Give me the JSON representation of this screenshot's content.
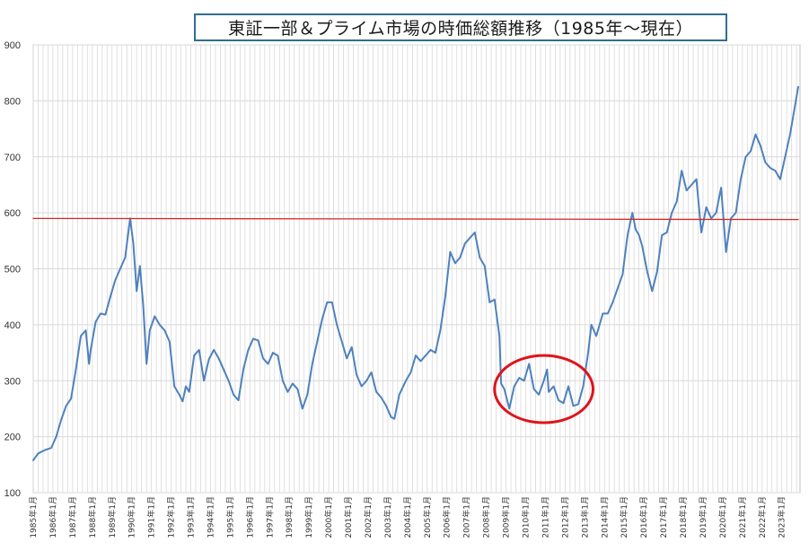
{
  "chart_data": {
    "type": "line",
    "title": "東証一部＆プライム市場の時価総額推移（1985年～現在）",
    "xlabel": "",
    "ylabel": "",
    "ylim": [
      100,
      900
    ],
    "yticks": [
      100,
      200,
      300,
      400,
      500,
      600,
      700,
      800,
      900
    ],
    "x_tick_labels": [
      "1985年1月",
      "1986年1月",
      "1987年1月",
      "1988年1月",
      "1989年1月",
      "1990年1月",
      "1991年1月",
      "1992年1月",
      "1993年1月",
      "1994年1月",
      "1995年1月",
      "1996年1月",
      "1997年1月",
      "1998年1月",
      "1999年1月",
      "2000年1月",
      "2001年1月",
      "2002年1月",
      "2003年1月",
      "2004年1月",
      "2005年1月",
      "2006年1月",
      "2007年1月",
      "2008年1月",
      "2009年1月",
      "2010年1月",
      "2011年1月",
      "2012年1月",
      "2013年1月",
      "2014年1月",
      "2015年1月",
      "2016年1月",
      "2017年1月",
      "2018年1月",
      "2019年1月",
      "2020年1月",
      "2021年1月",
      "2022年1月",
      "2023年1月"
    ],
    "grid": true,
    "x_range": [
      "1985-01",
      "2023-11"
    ],
    "series": [
      {
        "color": "#4f81bd",
        "points": [
          [
            "1985-01",
            158
          ],
          [
            "1985-04",
            170
          ],
          [
            "1985-08",
            176
          ],
          [
            "1985-12",
            180
          ],
          [
            "1986-03",
            200
          ],
          [
            "1986-06",
            230
          ],
          [
            "1986-09",
            255
          ],
          [
            "1986-12",
            268
          ],
          [
            "1987-03",
            320
          ],
          [
            "1987-06",
            380
          ],
          [
            "1987-09",
            390
          ],
          [
            "1987-11",
            330
          ],
          [
            "1987-12",
            355
          ],
          [
            "1988-03",
            405
          ],
          [
            "1988-06",
            420
          ],
          [
            "1988-09",
            418
          ],
          [
            "1988-12",
            450
          ],
          [
            "1989-03",
            480
          ],
          [
            "1989-06",
            500
          ],
          [
            "1989-09",
            520
          ],
          [
            "1989-12",
            590
          ],
          [
            "1990-02",
            545
          ],
          [
            "1990-04",
            460
          ],
          [
            "1990-06",
            505
          ],
          [
            "1990-08",
            435
          ],
          [
            "1990-10",
            330
          ],
          [
            "1990-12",
            390
          ],
          [
            "1991-03",
            415
          ],
          [
            "1991-06",
            400
          ],
          [
            "1991-09",
            390
          ],
          [
            "1991-12",
            370
          ],
          [
            "1992-03",
            290
          ],
          [
            "1992-06",
            275
          ],
          [
            "1992-08",
            263
          ],
          [
            "1992-10",
            290
          ],
          [
            "1992-12",
            280
          ],
          [
            "1993-03",
            345
          ],
          [
            "1993-06",
            355
          ],
          [
            "1993-09",
            300
          ],
          [
            "1993-12",
            338
          ],
          [
            "1994-03",
            355
          ],
          [
            "1994-06",
            340
          ],
          [
            "1994-09",
            320
          ],
          [
            "1994-12",
            300
          ],
          [
            "1995-03",
            275
          ],
          [
            "1995-06",
            265
          ],
          [
            "1995-09",
            320
          ],
          [
            "1995-12",
            355
          ],
          [
            "1996-03",
            375
          ],
          [
            "1996-06",
            372
          ],
          [
            "1996-09",
            340
          ],
          [
            "1996-12",
            330
          ],
          [
            "1997-03",
            350
          ],
          [
            "1997-06",
            345
          ],
          [
            "1997-09",
            300
          ],
          [
            "1997-12",
            280
          ],
          [
            "1998-03",
            295
          ],
          [
            "1998-06",
            285
          ],
          [
            "1998-09",
            250
          ],
          [
            "1998-12",
            275
          ],
          [
            "1999-03",
            330
          ],
          [
            "1999-06",
            370
          ],
          [
            "1999-09",
            410
          ],
          [
            "1999-12",
            440
          ],
          [
            "2000-03",
            440
          ],
          [
            "2000-06",
            400
          ],
          [
            "2000-09",
            370
          ],
          [
            "2000-12",
            340
          ],
          [
            "2001-03",
            360
          ],
          [
            "2001-06",
            310
          ],
          [
            "2001-09",
            290
          ],
          [
            "2001-12",
            300
          ],
          [
            "2002-03",
            315
          ],
          [
            "2002-06",
            280
          ],
          [
            "2002-09",
            270
          ],
          [
            "2002-12",
            255
          ],
          [
            "2003-03",
            235
          ],
          [
            "2003-05",
            232
          ],
          [
            "2003-08",
            275
          ],
          [
            "2003-12",
            300
          ],
          [
            "2004-03",
            315
          ],
          [
            "2004-06",
            345
          ],
          [
            "2004-09",
            335
          ],
          [
            "2004-12",
            345
          ],
          [
            "2005-03",
            355
          ],
          [
            "2005-06",
            350
          ],
          [
            "2005-09",
            390
          ],
          [
            "2005-12",
            450
          ],
          [
            "2006-03",
            530
          ],
          [
            "2006-06",
            510
          ],
          [
            "2006-09",
            520
          ],
          [
            "2006-12",
            545
          ],
          [
            "2007-03",
            555
          ],
          [
            "2007-06",
            565
          ],
          [
            "2007-09",
            520
          ],
          [
            "2007-12",
            505
          ],
          [
            "2008-03",
            440
          ],
          [
            "2008-06",
            445
          ],
          [
            "2008-09",
            380
          ],
          [
            "2008-10",
            295
          ],
          [
            "2008-12",
            285
          ],
          [
            "2009-03",
            250
          ],
          [
            "2009-06",
            290
          ],
          [
            "2009-09",
            305
          ],
          [
            "2009-12",
            300
          ],
          [
            "2010-03",
            330
          ],
          [
            "2010-06",
            285
          ],
          [
            "2010-09",
            275
          ],
          [
            "2010-12",
            300
          ],
          [
            "2011-02",
            320
          ],
          [
            "2011-03",
            280
          ],
          [
            "2011-06",
            290
          ],
          [
            "2011-09",
            265
          ],
          [
            "2011-12",
            260
          ],
          [
            "2012-03",
            290
          ],
          [
            "2012-06",
            255
          ],
          [
            "2012-09",
            258
          ],
          [
            "2012-12",
            290
          ],
          [
            "2013-03",
            350
          ],
          [
            "2013-05",
            400
          ],
          [
            "2013-08",
            380
          ],
          [
            "2013-12",
            420
          ],
          [
            "2014-03",
            420
          ],
          [
            "2014-06",
            440
          ],
          [
            "2014-09",
            465
          ],
          [
            "2014-12",
            490
          ],
          [
            "2015-03",
            560
          ],
          [
            "2015-06",
            600
          ],
          [
            "2015-08",
            570
          ],
          [
            "2015-10",
            560
          ],
          [
            "2015-12",
            540
          ],
          [
            "2016-03",
            495
          ],
          [
            "2016-06",
            460
          ],
          [
            "2016-09",
            495
          ],
          [
            "2016-12",
            560
          ],
          [
            "2017-03",
            565
          ],
          [
            "2017-06",
            600
          ],
          [
            "2017-09",
            620
          ],
          [
            "2017-12",
            675
          ],
          [
            "2018-03",
            640
          ],
          [
            "2018-06",
            650
          ],
          [
            "2018-09",
            660
          ],
          [
            "2018-12",
            565
          ],
          [
            "2019-03",
            610
          ],
          [
            "2019-06",
            590
          ],
          [
            "2019-09",
            600
          ],
          [
            "2019-12",
            645
          ],
          [
            "2020-03",
            530
          ],
          [
            "2020-06",
            590
          ],
          [
            "2020-09",
            600
          ],
          [
            "2020-12",
            660
          ],
          [
            "2021-03",
            700
          ],
          [
            "2021-06",
            710
          ],
          [
            "2021-09",
            740
          ],
          [
            "2021-12",
            720
          ],
          [
            "2022-03",
            690
          ],
          [
            "2022-06",
            680
          ],
          [
            "2022-09",
            675
          ],
          [
            "2022-12",
            660
          ],
          [
            "2023-03",
            700
          ],
          [
            "2023-06",
            740
          ],
          [
            "2023-09",
            790
          ],
          [
            "2023-11",
            825
          ]
        ]
      },
      {
        "color": "#d62728",
        "points": [
          [
            "1985-01",
            590
          ],
          [
            "2023-11",
            588
          ]
        ]
      }
    ],
    "annotations": [
      {
        "shape": "ellipse",
        "color": "#e0131b",
        "x_range": [
          "2008-06",
          "2013-06"
        ],
        "y_range": [
          225,
          345
        ]
      }
    ]
  }
}
